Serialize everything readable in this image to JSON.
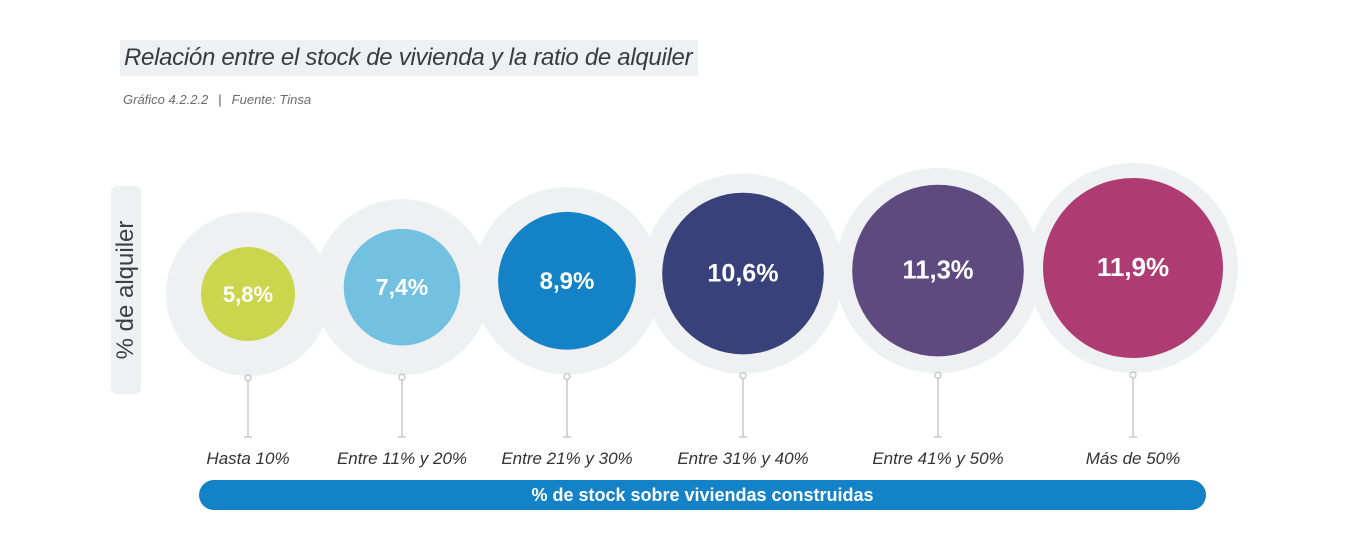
{
  "chart_data": {
    "type": "bubble",
    "title": "Relación entre el stock de vivienda y la ratio de alquiler",
    "subtitle": {
      "figure_number": "Gráfico 4.2.2.2",
      "source": "Fuente: Tinsa"
    },
    "ylabel": "% de alquiler",
    "xlabel": "% de stock sobre viviendas construidas",
    "categories": [
      "Hasta 10%",
      "Entre  11% y 20%",
      "Entre 21% y 30%",
      "Entre 31% y 40%",
      "Entre 41% y 50%",
      "Más de 50%"
    ],
    "values": [
      5.8,
      7.4,
      8.9,
      10.6,
      11.3,
      11.9
    ],
    "value_labels": [
      "5,8%",
      "7,4%",
      "8,9%",
      "10,6%",
      "11,3%",
      "11,9%"
    ],
    "colors": [
      "#cbd64c",
      "#72c1e0",
      "#1382c6",
      "#38417a",
      "#5f4a80",
      "#ae3c73"
    ],
    "ring_color": "#eef0f2",
    "connector_color": "#c9c9c9"
  }
}
